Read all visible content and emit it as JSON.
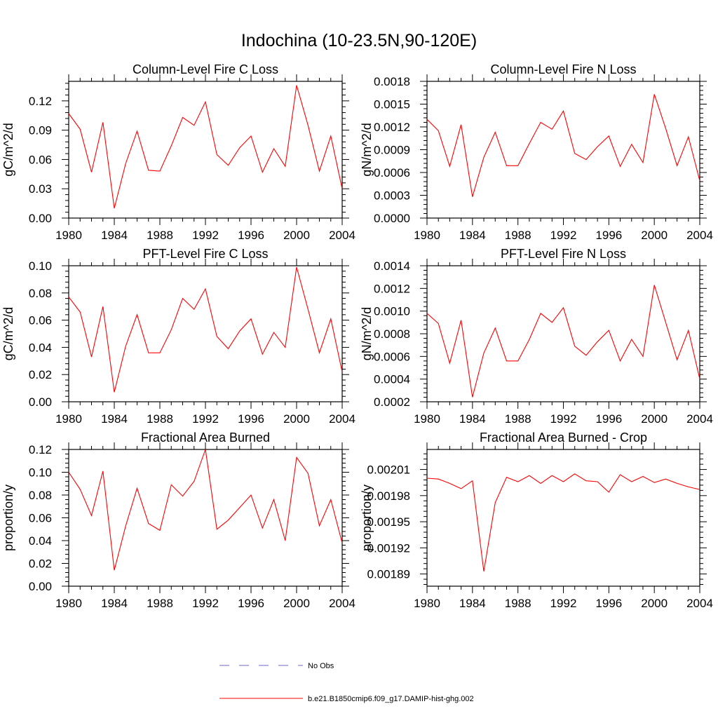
{
  "title": "Indochina (10-23.5N,90-120E)",
  "legend": {
    "placement": "bottom-center",
    "entries": [
      {
        "label": "No Obs",
        "color": "#6a6acd",
        "dash": true
      },
      {
        "label": "b.e21.B1850cmip6.f09_g17.DAMIP-hist-ghg.002",
        "color": "#ff0000",
        "dash": false
      }
    ]
  },
  "chart_data": [
    {
      "type": "line",
      "title": "Column-Level Fire C Loss",
      "xlabel": "",
      "ylabel": "gC/m^2/d",
      "xlim": [
        1980,
        2004
      ],
      "ylim": [
        0,
        0.14
      ],
      "xticks": [
        "1980",
        "1984",
        "1988",
        "1992",
        "1996",
        "2000",
        "2004"
      ],
      "yticks": [
        {
          "v": 0,
          "label": "0.00"
        },
        {
          "v": 0.03,
          "label": "0.03"
        },
        {
          "v": 0.06,
          "label": "0.06"
        },
        {
          "v": 0.09,
          "label": "0.09"
        },
        {
          "v": 0.12,
          "label": "0.12"
        }
      ],
      "x": [
        1980,
        1981,
        1982,
        1983,
        1984,
        1985,
        1986,
        1987,
        1988,
        1989,
        1990,
        1991,
        1992,
        1993,
        1994,
        1995,
        1996,
        1997,
        1998,
        1999,
        2000,
        2001,
        2002,
        2003,
        2004
      ],
      "series": [
        {
          "color": "#ff0000",
          "values": [
            0.107,
            0.091,
            0.047,
            0.098,
            0.01,
            0.056,
            0.089,
            0.049,
            0.048,
            0.074,
            0.103,
            0.095,
            0.119,
            0.065,
            0.054,
            0.072,
            0.084,
            0.047,
            0.071,
            0.053,
            0.136,
            0.095,
            0.048,
            0.084,
            0.03
          ]
        }
      ]
    },
    {
      "type": "line",
      "title": "Column-Level Fire N Loss",
      "xlabel": "",
      "ylabel": "gN/m^2/d",
      "xlim": [
        1980,
        2004
      ],
      "ylim": [
        0,
        0.0018
      ],
      "xticks": [
        "1980",
        "1984",
        "1988",
        "1992",
        "1996",
        "2000",
        "2004"
      ],
      "yticks": [
        {
          "v": 0,
          "label": "0.0000"
        },
        {
          "v": 0.0003,
          "label": "0.0003"
        },
        {
          "v": 0.0006,
          "label": "0.0006"
        },
        {
          "v": 0.0009,
          "label": "0.0009"
        },
        {
          "v": 0.0012,
          "label": "0.0012"
        },
        {
          "v": 0.0015,
          "label": "0.0015"
        },
        {
          "v": 0.0018,
          "label": "0.0018"
        }
      ],
      "x": [
        1980,
        1981,
        1982,
        1983,
        1984,
        1985,
        1986,
        1987,
        1988,
        1989,
        1990,
        1991,
        1992,
        1993,
        1994,
        1995,
        1996,
        1997,
        1998,
        1999,
        2000,
        2001,
        2002,
        2003,
        2004
      ],
      "series": [
        {
          "color": "#ff0000",
          "values": [
            0.0013,
            0.00115,
            0.00068,
            0.00123,
            0.00028,
            0.0008,
            0.00113,
            0.00069,
            0.00069,
            0.00098,
            0.00126,
            0.00117,
            0.00141,
            0.00085,
            0.00077,
            0.00094,
            0.00108,
            0.00068,
            0.00097,
            0.00073,
            0.00163,
            0.00118,
            0.00069,
            0.00107,
            0.00049
          ]
        }
      ]
    },
    {
      "type": "line",
      "title": "PFT-Level Fire C Loss",
      "xlabel": "",
      "ylabel": "gC/m^2/d",
      "xlim": [
        1980,
        2004
      ],
      "ylim": [
        0,
        0.1
      ],
      "xticks": [
        "1980",
        "1984",
        "1988",
        "1992",
        "1996",
        "2000",
        "2004"
      ],
      "yticks": [
        {
          "v": 0,
          "label": "0.00"
        },
        {
          "v": 0.02,
          "label": "0.02"
        },
        {
          "v": 0.04,
          "label": "0.04"
        },
        {
          "v": 0.06,
          "label": "0.06"
        },
        {
          "v": 0.08,
          "label": "0.08"
        },
        {
          "v": 0.1,
          "label": "0.10"
        }
      ],
      "x": [
        1980,
        1981,
        1982,
        1983,
        1984,
        1985,
        1986,
        1987,
        1988,
        1989,
        1990,
        1991,
        1992,
        1993,
        1994,
        1995,
        1996,
        1997,
        1998,
        1999,
        2000,
        2001,
        2002,
        2003,
        2004
      ],
      "series": [
        {
          "color": "#ff0000",
          "values": [
            0.077,
            0.066,
            0.033,
            0.07,
            0.007,
            0.041,
            0.064,
            0.036,
            0.036,
            0.053,
            0.076,
            0.068,
            0.083,
            0.048,
            0.039,
            0.052,
            0.061,
            0.035,
            0.051,
            0.04,
            0.099,
            0.068,
            0.036,
            0.061,
            0.022
          ]
        }
      ]
    },
    {
      "type": "line",
      "title": "PFT-Level Fire N Loss",
      "xlabel": "",
      "ylabel": "gN/m^2/d",
      "xlim": [
        1980,
        2004
      ],
      "ylim": [
        0.0002,
        0.0014
      ],
      "xticks": [
        "1980",
        "1984",
        "1988",
        "1992",
        "1996",
        "2000",
        "2004"
      ],
      "yticks": [
        {
          "v": 0.0002,
          "label": "0.0002"
        },
        {
          "v": 0.0004,
          "label": "0.0004"
        },
        {
          "v": 0.0006,
          "label": "0.0006"
        },
        {
          "v": 0.0008,
          "label": "0.0008"
        },
        {
          "v": 0.001,
          "label": "0.0010"
        },
        {
          "v": 0.0012,
          "label": "0.0012"
        },
        {
          "v": 0.0014,
          "label": "0.0014"
        }
      ],
      "x": [
        1980,
        1981,
        1982,
        1983,
        1984,
        1985,
        1986,
        1987,
        1988,
        1989,
        1990,
        1991,
        1992,
        1993,
        1994,
        1995,
        1996,
        1997,
        1998,
        1999,
        2000,
        2001,
        2002,
        2003,
        2004
      ],
      "series": [
        {
          "color": "#ff0000",
          "values": [
            0.00098,
            0.00089,
            0.00054,
            0.00092,
            0.00024,
            0.00063,
            0.00085,
            0.00056,
            0.00056,
            0.00075,
            0.00098,
            0.0009,
            0.00103,
            0.00069,
            0.00061,
            0.00073,
            0.00083,
            0.00056,
            0.00075,
            0.0006,
            0.00123,
            0.0009,
            0.00057,
            0.00083,
            0.0004
          ]
        }
      ]
    },
    {
      "type": "line",
      "title": "Fractional Area Burned",
      "xlabel": "",
      "ylabel": "proportion/y",
      "xlim": [
        1980,
        2004
      ],
      "ylim": [
        0,
        0.12
      ],
      "xticks": [
        "1980",
        "1984",
        "1988",
        "1992",
        "1996",
        "2000",
        "2004"
      ],
      "yticks": [
        {
          "v": 0,
          "label": "0.00"
        },
        {
          "v": 0.02,
          "label": "0.02"
        },
        {
          "v": 0.04,
          "label": "0.04"
        },
        {
          "v": 0.06,
          "label": "0.06"
        },
        {
          "v": 0.08,
          "label": "0.08"
        },
        {
          "v": 0.1,
          "label": "0.10"
        },
        {
          "v": 0.12,
          "label": "0.12"
        }
      ],
      "x": [
        1980,
        1981,
        1982,
        1983,
        1984,
        1985,
        1986,
        1987,
        1988,
        1989,
        1990,
        1991,
        1992,
        1993,
        1994,
        1995,
        1996,
        1997,
        1998,
        1999,
        2000,
        2001,
        2002,
        2003,
        2004
      ],
      "series": [
        {
          "color": "#ff0000",
          "values": [
            0.1,
            0.085,
            0.062,
            0.101,
            0.014,
            0.053,
            0.086,
            0.055,
            0.049,
            0.089,
            0.079,
            0.092,
            0.12,
            0.05,
            0.058,
            0.069,
            0.08,
            0.051,
            0.076,
            0.04,
            0.113,
            0.099,
            0.053,
            0.076,
            0.038
          ]
        }
      ]
    },
    {
      "type": "line",
      "title": "Fractional Area Burned - Crop",
      "xlabel": "",
      "ylabel": "proportion/y",
      "xlim": [
        1980,
        2004
      ],
      "ylim": [
        0.001876,
        0.002033
      ],
      "xticks": [
        "1980",
        "1984",
        "1988",
        "1992",
        "1996",
        "2000",
        "2004"
      ],
      "yticks": [
        {
          "v": 0.00189,
          "label": "0.00189"
        },
        {
          "v": 0.00192,
          "label": "0.00192"
        },
        {
          "v": 0.00195,
          "label": "0.00195"
        },
        {
          "v": 0.00198,
          "label": "0.00198"
        },
        {
          "v": 0.00201,
          "label": "0.00201"
        }
      ],
      "x": [
        1980,
        1981,
        1982,
        1983,
        1984,
        1985,
        1986,
        1987,
        1988,
        1989,
        1990,
        1991,
        1992,
        1993,
        1994,
        1995,
        1996,
        1997,
        1998,
        1999,
        2000,
        2001,
        2002,
        2003,
        2004
      ],
      "series": [
        {
          "color": "#ff0000",
          "values": [
            0.002,
            0.001999,
            0.001994,
            0.001988,
            0.001997,
            0.001893,
            0.001972,
            0.002001,
            0.001996,
            0.002003,
            0.001994,
            0.002003,
            0.001996,
            0.002005,
            0.001997,
            0.001996,
            0.001984,
            0.002004,
            0.001996,
            0.002002,
            0.001995,
            0.001999,
            0.001994,
            0.00199,
            0.001987
          ]
        }
      ]
    }
  ]
}
